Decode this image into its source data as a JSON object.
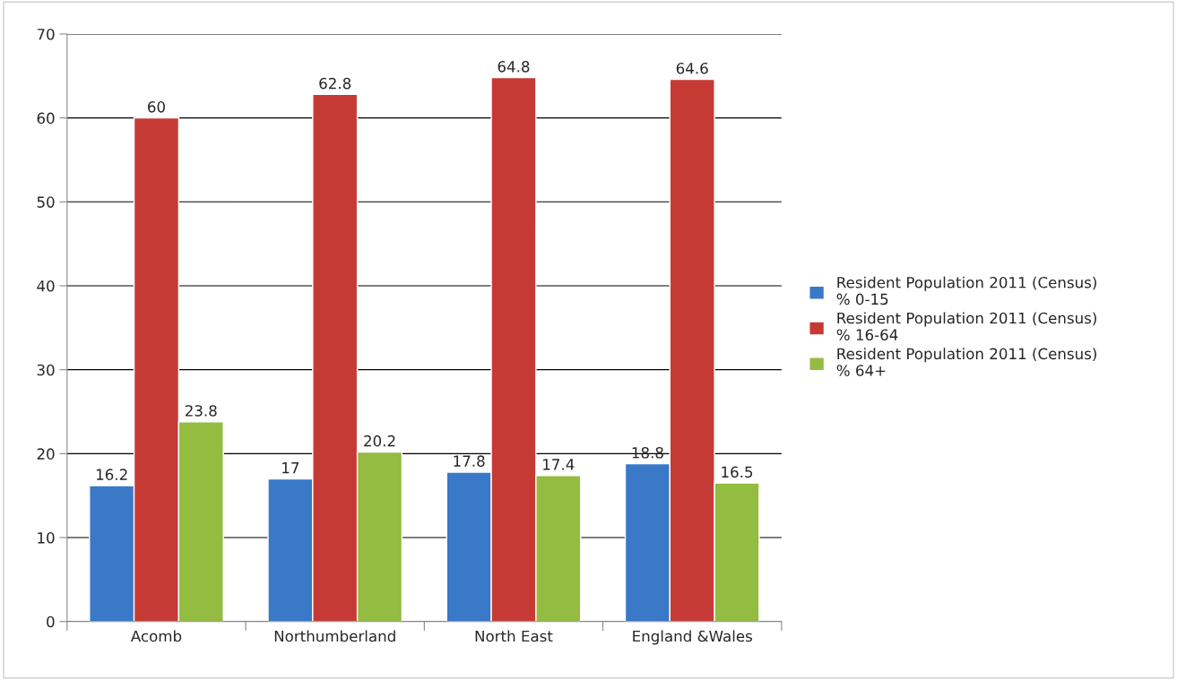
{
  "chart_data": {
    "type": "bar",
    "categories": [
      "Acomb",
      "Northumberland",
      "North East",
      "England &Wales"
    ],
    "series": [
      {
        "name": "Resident Population 2011 (Census)\n% 0-15",
        "color": "#3a78c8",
        "values": [
          16.2,
          17,
          17.8,
          18.8
        ]
      },
      {
        "name": "Resident Population 2011 (Census)\n% 16-64",
        "color": "#c63a36",
        "values": [
          60,
          62.8,
          64.8,
          64.6
        ]
      },
      {
        "name": "Resident Population 2011 (Census)\n% 64+",
        "color": "#93bc40",
        "values": [
          23.8,
          20.2,
          17.4,
          16.5
        ]
      }
    ],
    "ylim": [
      0,
      70
    ],
    "yticks": [
      0,
      10,
      20,
      30,
      40,
      50,
      60,
      70
    ],
    "grid": "y",
    "legend": "right",
    "data_labels": true
  }
}
